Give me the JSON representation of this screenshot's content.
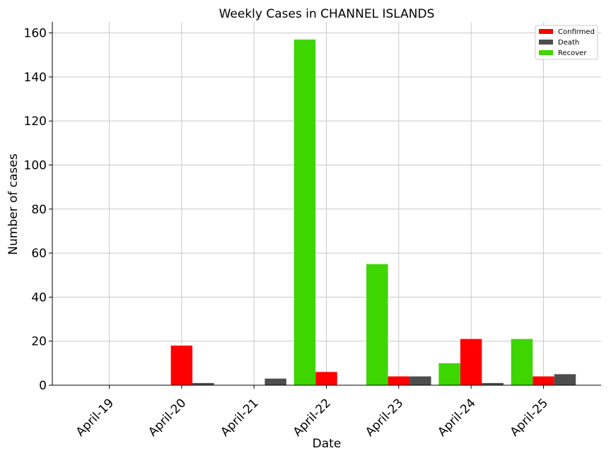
{
  "chart_data": {
    "type": "bar",
    "title": "Weekly Cases in CHANNEL ISLANDS",
    "xlabel": "Date",
    "ylabel": "Number of cases",
    "categories": [
      "April-19",
      "April-20",
      "April-21",
      "April-22",
      "April-23",
      "April-24",
      "April-25"
    ],
    "ylim": [
      0,
      165
    ],
    "yticks": [
      0,
      20,
      40,
      60,
      80,
      100,
      120,
      140,
      160
    ],
    "grid": true,
    "legend_position": "top-right",
    "series": [
      {
        "name": "Confirmed",
        "color": "#ff0000",
        "values": [
          0,
          18,
          0,
          6,
          4,
          21,
          4
        ]
      },
      {
        "name": "Death",
        "color": "#4d4d4d",
        "values": [
          0,
          1,
          3,
          0,
          4,
          1,
          5
        ]
      },
      {
        "name": "Recover",
        "color": "#3dd600",
        "values": [
          0,
          0,
          0,
          157,
          55,
          10,
          21
        ]
      }
    ]
  }
}
